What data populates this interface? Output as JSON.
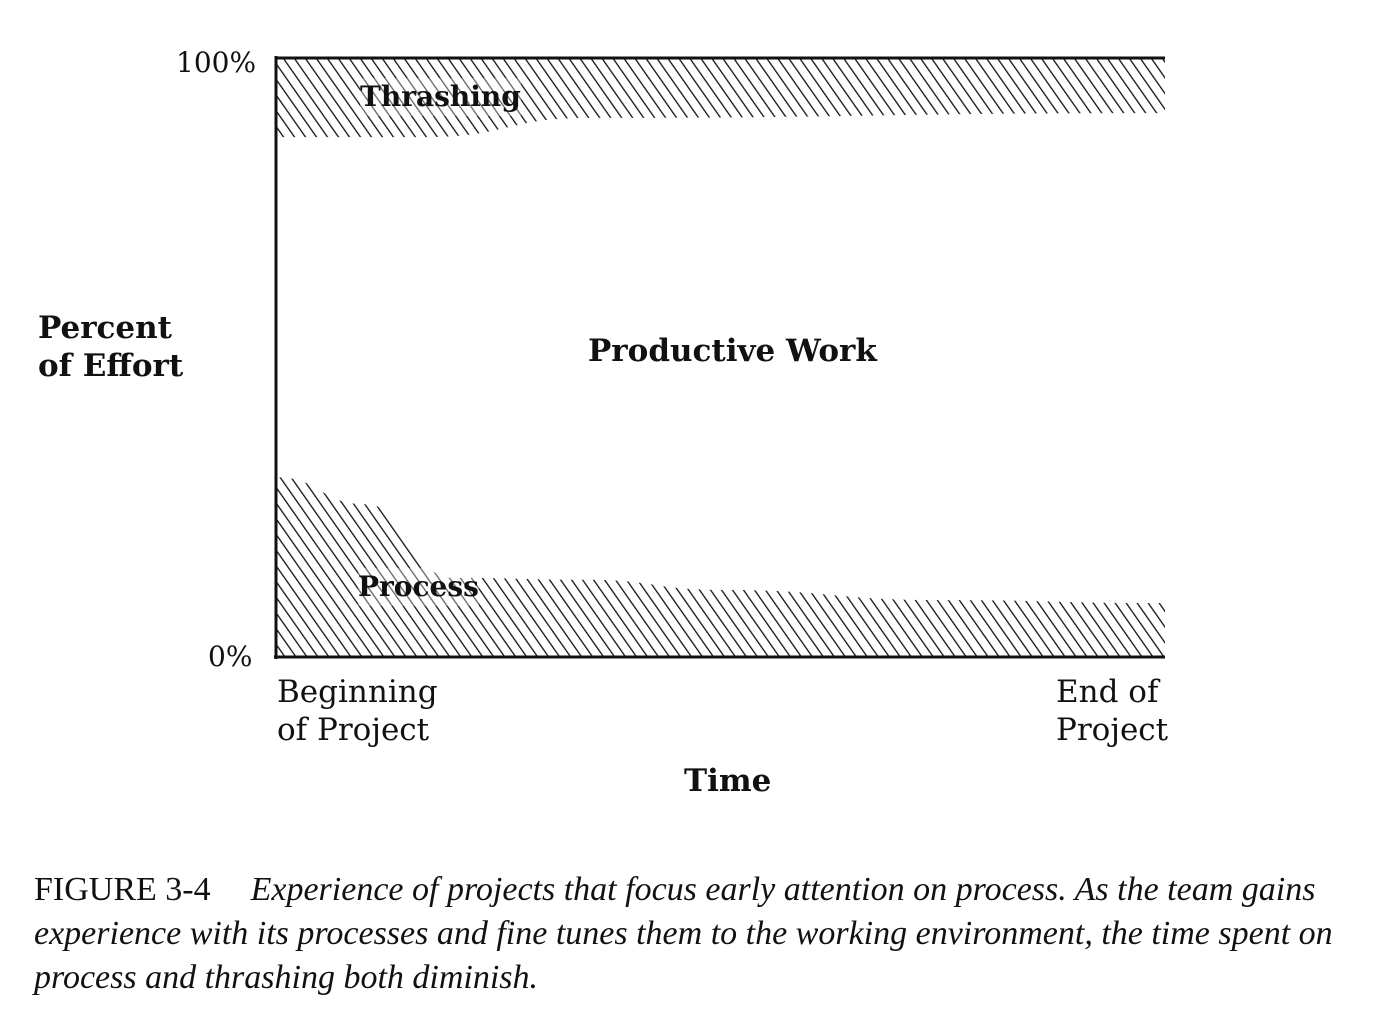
{
  "chart_data": {
    "type": "area",
    "stacking": "percent",
    "xlabel": "Time",
    "ylabel": "Percent of Effort",
    "ylabel_lines": [
      "Percent",
      "of Effort"
    ],
    "x_tick_labels": {
      "start": [
        "Beginning",
        "of Project"
      ],
      "end": [
        "End of",
        "Project"
      ]
    },
    "xlim": [
      0,
      1
    ],
    "y_tick_labels": [
      "0%",
      "100%"
    ],
    "ylim": [
      0,
      100
    ],
    "grid": false,
    "series": [
      {
        "name": "Process",
        "position": "bottom",
        "fill": "hatched",
        "x": [
          0,
          0.1,
          0.2,
          0.35,
          0.5,
          0.75,
          1
        ],
        "values": [
          30,
          25.5,
          13.2,
          12.9,
          11.2,
          9.5,
          9
        ]
      },
      {
        "name": "Productive Work",
        "position": "middle",
        "fill": "white"
      },
      {
        "name": "Thrashing",
        "position": "top",
        "fill": "hatched",
        "x": [
          0,
          0.17,
          0.35,
          1
        ],
        "values": [
          13.2,
          13.2,
          10.0,
          9.2
        ]
      }
    ]
  },
  "caption": {
    "figure_label": "FIGURE 3-4",
    "text": "Experience of projects that focus early attention on process. As the team gains experience with its processes and fine tunes them to the working environment, the time spent on process and thrashing both diminish."
  },
  "colors": {
    "ink": "#111111",
    "background": "#ffffff"
  }
}
